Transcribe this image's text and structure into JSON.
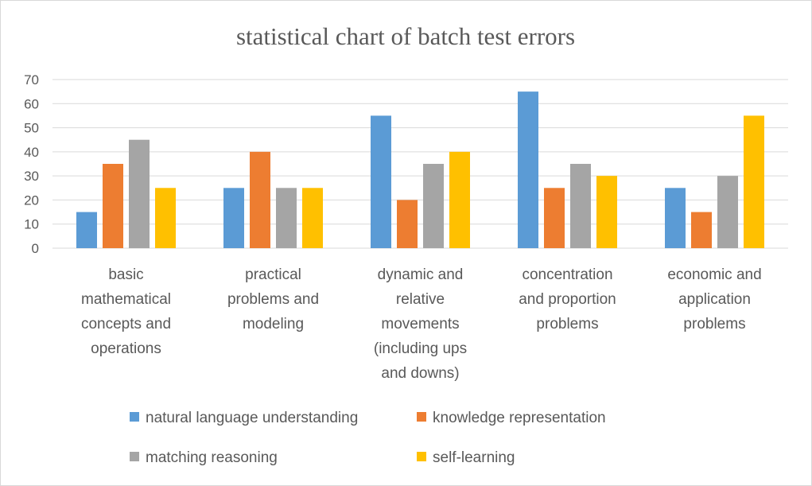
{
  "chart_data": {
    "type": "bar",
    "title": "statistical chart of batch test errors",
    "categories": [
      [
        "basic",
        "mathematical",
        "concepts and",
        "operations"
      ],
      [
        "practical",
        "problems and",
        "modeling"
      ],
      [
        "dynamic and",
        "relative",
        "movements",
        "(including ups",
        "and downs)"
      ],
      [
        "concentration",
        "and proportion",
        "problems"
      ],
      [
        "economic and",
        "application",
        "problems"
      ]
    ],
    "series": [
      {
        "name": "natural language understanding",
        "color": "#5b9bd5",
        "values": [
          15,
          25,
          55,
          65,
          25
        ]
      },
      {
        "name": "knowledge representation",
        "color": "#ed7d31",
        "values": [
          35,
          40,
          20,
          25,
          15
        ]
      },
      {
        "name": "matching reasoning",
        "color": "#a5a5a5",
        "values": [
          45,
          25,
          35,
          35,
          30
        ]
      },
      {
        "name": "self-learning",
        "color": "#ffc000",
        "values": [
          25,
          25,
          40,
          30,
          55
        ]
      }
    ],
    "ylim": [
      0,
      70
    ],
    "yticks": [
      "0",
      "10",
      "20",
      "30",
      "40",
      "50",
      "60",
      "70"
    ],
    "grid": true,
    "legend_position": "bottom"
  }
}
